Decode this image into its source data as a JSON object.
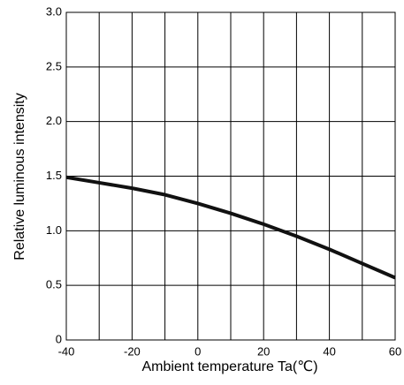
{
  "chart_data": {
    "type": "line",
    "xlabel": "Ambient temperature Ta(℃)",
    "ylabel": "Relative luminous intensity",
    "x": [
      -40,
      -30,
      -20,
      -10,
      0,
      10,
      20,
      30,
      40,
      50,
      60
    ],
    "series": [
      {
        "color": "#111111",
        "values": [
          1.49,
          1.44,
          1.39,
          1.33,
          1.25,
          1.16,
          1.06,
          0.95,
          0.83,
          0.7,
          0.57
        ]
      }
    ],
    "xlim": [
      -40,
      60
    ],
    "ylim": [
      0,
      3
    ],
    "xticks": [
      -40,
      -20,
      0,
      20,
      40,
      60
    ],
    "xminor": [
      -30,
      -10,
      10,
      30,
      50
    ],
    "yticks": [
      0,
      0.5,
      {
        "value": 1,
        "label": "1.0"
      },
      1.5,
      {
        "value": 2,
        "label": "2.0"
      },
      2.5,
      {
        "value": 3,
        "label": "3.0"
      }
    ],
    "grid": true
  }
}
